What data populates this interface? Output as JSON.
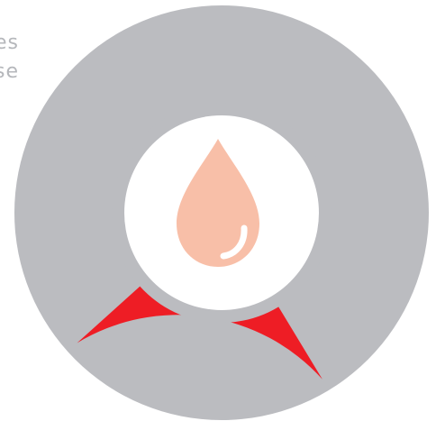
{
  "text_fragments": [
    "es",
    "se"
  ],
  "gauge": {
    "highlight_fraction": 0.22,
    "track_color": "#BBBCC0",
    "highlight_color": "#EE1D25",
    "center_color": "#FFFFFF",
    "icon": "blood-drop-icon",
    "icon_color": "#F8BFA8",
    "icon_shine_color": "#FFFFFF"
  }
}
